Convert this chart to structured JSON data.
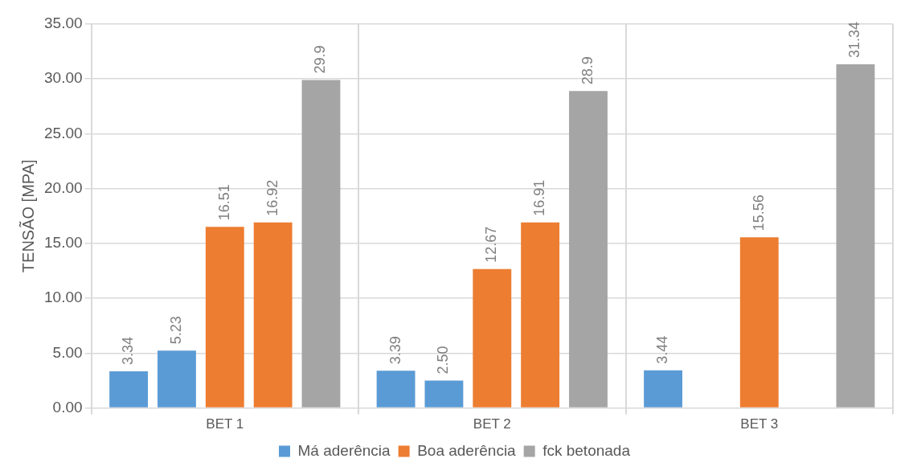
{
  "chart_data": {
    "type": "bar",
    "ylabel": "TENSÃO [MPA]",
    "categories": [
      "BET 1",
      "BET 2",
      "BET 3"
    ],
    "series": [
      {
        "name": "Má aderência",
        "color": "#5b9bd5",
        "values": [
          3.34,
          3.39,
          3.44
        ],
        "value_labels": [
          "3.34",
          "3.39",
          "3.44"
        ]
      },
      {
        "color": "#5b9bd5",
        "values": [
          5.23,
          2.5,
          null
        ],
        "value_labels": [
          "5.23",
          "2.50",
          null
        ]
      },
      {
        "name": "Boa aderência",
        "color": "#ed7d31",
        "values": [
          16.51,
          12.67,
          15.56
        ],
        "value_labels": [
          "16.51",
          "12.67",
          "15.56"
        ]
      },
      {
        "color": "#ed7d31",
        "values": [
          16.92,
          16.91,
          null
        ],
        "value_labels": [
          "16.92",
          "16.91",
          null
        ]
      },
      {
        "name": "fck betonada",
        "color": "#a5a5a5",
        "values": [
          29.9,
          28.9,
          31.34
        ],
        "value_labels": [
          "29.9",
          "28.9",
          "31.34"
        ]
      }
    ],
    "ylim": [
      0,
      35
    ],
    "yticks": [
      {
        "value": 0,
        "label": "0.00"
      },
      {
        "value": 5,
        "label": "5.00"
      },
      {
        "value": 10,
        "label": "10.00"
      },
      {
        "value": 15,
        "label": "15.00"
      },
      {
        "value": 20,
        "label": "20.00"
      },
      {
        "value": 25,
        "label": "25.00"
      },
      {
        "value": 30,
        "label": "30.00"
      },
      {
        "value": 35,
        "label": "35.00"
      }
    ],
    "grid": true,
    "legend": "bottom"
  }
}
